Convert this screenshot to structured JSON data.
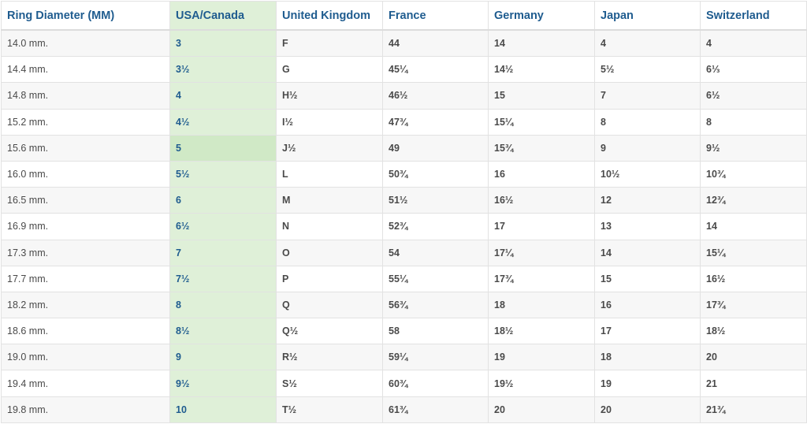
{
  "accent_color": "#1f5c8f",
  "highlight_column_color": "#dff0d8",
  "headers": [
    "Ring Diameter (MM)",
    "USA/Canada",
    "United Kingdom",
    "France",
    "Germany",
    "Japan",
    "Switzerland"
  ],
  "rows": [
    [
      "14.0 mm.",
      "3",
      "F",
      "44",
      "14",
      "4",
      "4"
    ],
    [
      "14.4 mm.",
      "3½",
      "G",
      "45¼",
      "14½",
      "5½",
      "6⅓"
    ],
    [
      "14.8 mm.",
      "4",
      "H½",
      "46½",
      "15",
      "7",
      "6½"
    ],
    [
      "15.2 mm.",
      "4½",
      "I½",
      "47¾",
      "15¼",
      "8",
      "8"
    ],
    [
      "15.6 mm.",
      "5",
      "J½",
      "49",
      "15¾",
      "9",
      "9½"
    ],
    [
      "16.0 mm.",
      "5½",
      "L",
      "50¾",
      "16",
      "10½",
      "10¾"
    ],
    [
      "16.5 mm.",
      "6",
      "M",
      "51½",
      "16½",
      "12",
      "12¾"
    ],
    [
      "16.9 mm.",
      "6½",
      "N",
      "52¾",
      "17",
      "13",
      "14"
    ],
    [
      "17.3 mm.",
      "7",
      "O",
      "54",
      "17¼",
      "14",
      "15¼"
    ],
    [
      "17.7 mm.",
      "7½",
      "P",
      "55¼",
      "17¾",
      "15",
      "16½"
    ],
    [
      "18.2 mm.",
      "8",
      "Q",
      "56¾",
      "18",
      "16",
      "17¾"
    ],
    [
      "18.6 mm.",
      "8½",
      "Q½",
      "58",
      "18½",
      "17",
      "18½"
    ],
    [
      "19.0 mm.",
      "9",
      "R½",
      "59¼",
      "19",
      "18",
      "20"
    ],
    [
      "19.4 mm.",
      "9½",
      "S½",
      "60¾",
      "19½",
      "19",
      "21"
    ],
    [
      "19.8 mm.",
      "10",
      "T½",
      "61¾",
      "20",
      "20",
      "21¾"
    ]
  ],
  "highlighted_row": 4
}
